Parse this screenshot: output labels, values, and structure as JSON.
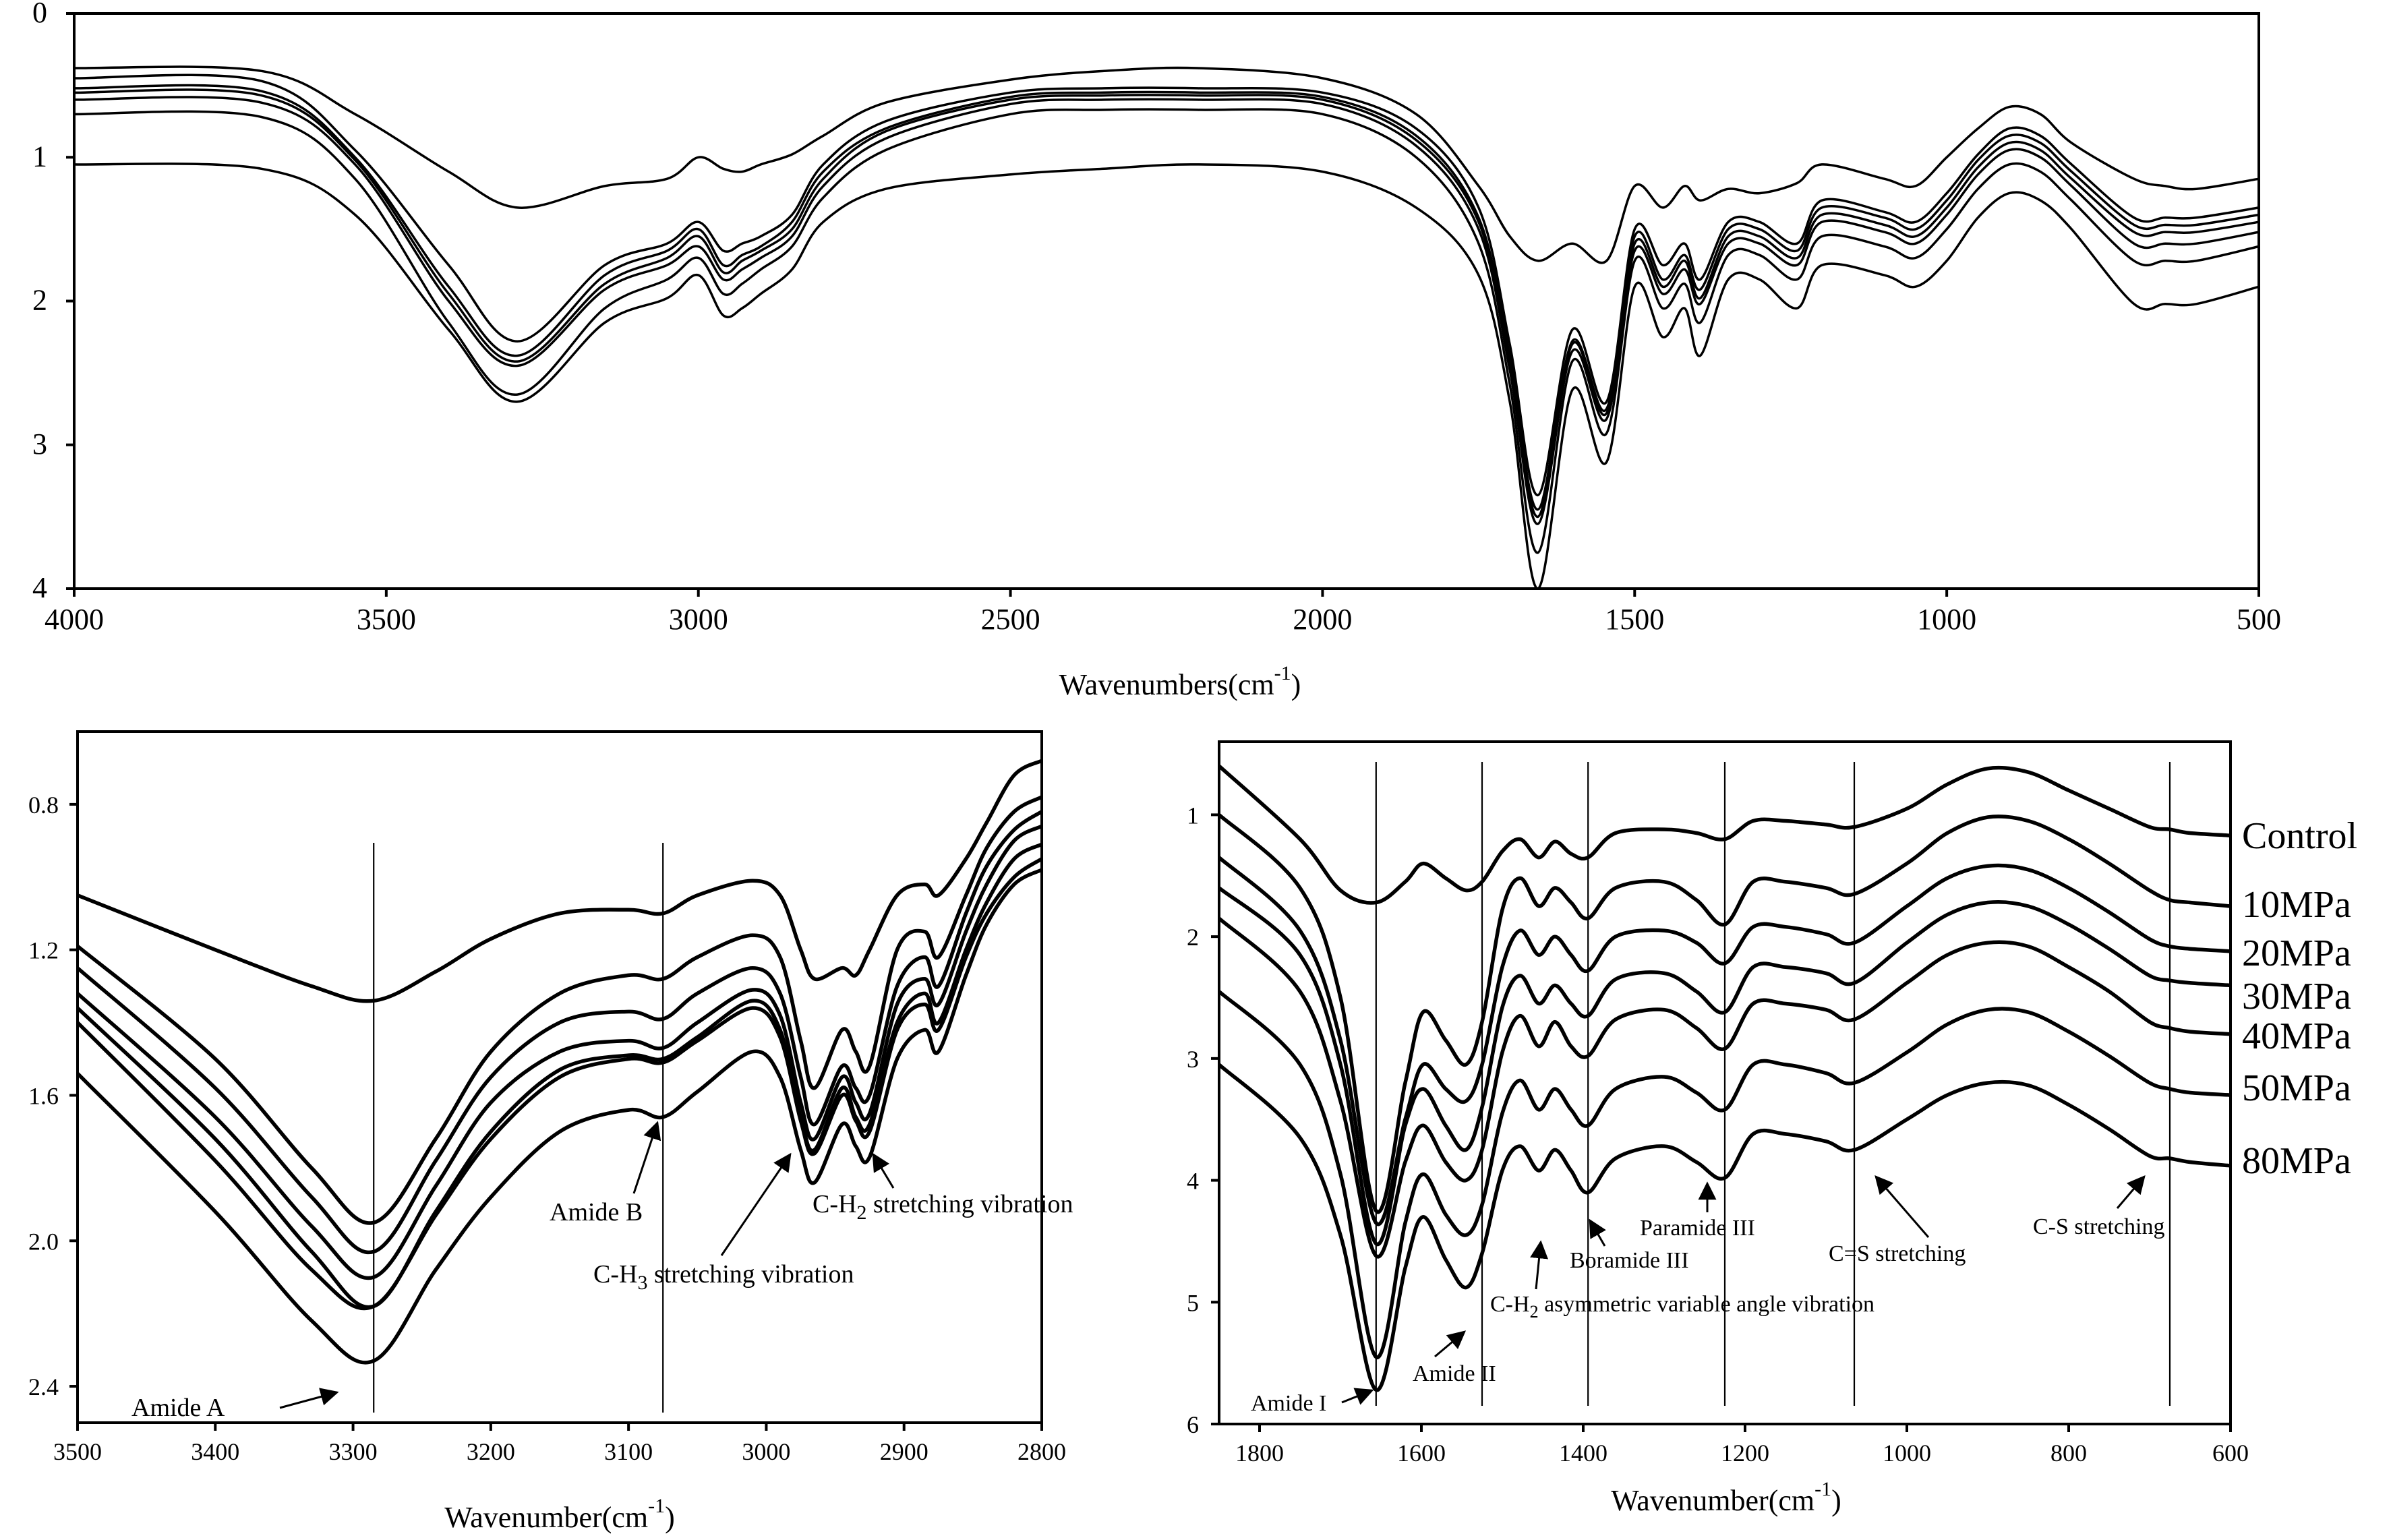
{
  "chart_data": [
    {
      "type": "line",
      "title": "",
      "xlabel": "Wavenumbers(cm-1)",
      "xlabel_text": "Wavenumbers(cm",
      "xlabel_sup": "-1",
      "xlabel_close": ")",
      "xlim": [
        4000,
        500
      ],
      "ylim": [
        0,
        4
      ],
      "y_inverted": true,
      "xticks": [
        4000,
        3500,
        3000,
        2500,
        2000,
        1500,
        1000,
        500
      ],
      "yticks": [
        0,
        1,
        2,
        3,
        4
      ],
      "key_x": [
        4000,
        3700,
        3550,
        3400,
        3290,
        3150,
        3050,
        3000,
        2960,
        2930,
        2900,
        2850,
        2800,
        2700,
        2500,
        2350,
        2200,
        2000,
        1850,
        1750,
        1700,
        1655,
        1600,
        1545,
        1500,
        1455,
        1420,
        1395,
        1350,
        1300,
        1240,
        1200,
        1100,
        1050,
        1000,
        950,
        900,
        850,
        800,
        700,
        650,
        600,
        500
      ],
      "series": [
        {
          "name": "Control",
          "values": [
            0.38,
            0.4,
            0.7,
            1.1,
            1.35,
            1.2,
            1.15,
            1.0,
            1.08,
            1.1,
            1.05,
            0.98,
            0.85,
            0.62,
            0.46,
            0.4,
            0.38,
            0.45,
            0.7,
            1.2,
            1.55,
            1.72,
            1.6,
            1.72,
            1.2,
            1.35,
            1.2,
            1.3,
            1.22,
            1.25,
            1.18,
            1.05,
            1.15,
            1.2,
            1.0,
            0.8,
            0.65,
            0.7,
            0.9,
            1.15,
            1.2,
            1.22,
            1.15
          ]
        },
        {
          "name": "10MPa",
          "values": [
            0.45,
            0.47,
            0.95,
            1.75,
            2.28,
            1.75,
            1.6,
            1.45,
            1.65,
            1.6,
            1.55,
            1.4,
            1.05,
            0.75,
            0.55,
            0.52,
            0.52,
            0.55,
            0.8,
            1.35,
            2.3,
            3.35,
            2.2,
            2.7,
            1.5,
            1.75,
            1.6,
            1.85,
            1.45,
            1.45,
            1.6,
            1.3,
            1.38,
            1.45,
            1.25,
            0.98,
            0.8,
            0.85,
            1.05,
            1.42,
            1.42,
            1.42,
            1.35
          ]
        },
        {
          "name": "20MPa",
          "values": [
            0.52,
            0.54,
            1.0,
            1.9,
            2.38,
            1.82,
            1.65,
            1.5,
            1.75,
            1.68,
            1.62,
            1.45,
            1.1,
            0.8,
            0.58,
            0.55,
            0.55,
            0.58,
            0.85,
            1.42,
            2.38,
            3.45,
            2.28,
            2.75,
            1.55,
            1.85,
            1.68,
            1.92,
            1.5,
            1.5,
            1.65,
            1.35,
            1.42,
            1.5,
            1.3,
            1.02,
            0.85,
            0.9,
            1.1,
            1.47,
            1.47,
            1.47,
            1.4
          ]
        },
        {
          "name": "30MPa",
          "values": [
            0.55,
            0.57,
            1.02,
            1.95,
            2.42,
            1.88,
            1.7,
            1.55,
            1.8,
            1.72,
            1.65,
            1.5,
            1.15,
            0.82,
            0.6,
            0.57,
            0.57,
            0.6,
            0.88,
            1.45,
            2.42,
            3.5,
            2.3,
            2.78,
            1.6,
            1.9,
            1.72,
            1.98,
            1.55,
            1.55,
            1.7,
            1.4,
            1.47,
            1.55,
            1.35,
            1.07,
            0.9,
            0.95,
            1.15,
            1.52,
            1.52,
            1.52,
            1.45
          ]
        },
        {
          "name": "40MPa",
          "values": [
            0.6,
            0.62,
            1.05,
            2.0,
            2.45,
            1.92,
            1.75,
            1.62,
            1.85,
            1.78,
            1.7,
            1.55,
            1.2,
            0.87,
            0.63,
            0.6,
            0.6,
            0.63,
            0.92,
            1.5,
            2.48,
            3.55,
            2.35,
            2.82,
            1.65,
            1.95,
            1.78,
            2.02,
            1.6,
            1.6,
            1.75,
            1.45,
            1.52,
            1.6,
            1.4,
            1.12,
            0.95,
            1.0,
            1.2,
            1.6,
            1.6,
            1.6,
            1.52
          ]
        },
        {
          "name": "50MPa",
          "values": [
            0.7,
            0.72,
            1.15,
            2.15,
            2.65,
            2.05,
            1.85,
            1.7,
            1.95,
            1.88,
            1.78,
            1.62,
            1.28,
            0.95,
            0.7,
            0.67,
            0.67,
            0.7,
            1.0,
            1.6,
            2.58,
            3.75,
            2.42,
            2.92,
            1.72,
            2.05,
            1.88,
            2.15,
            1.68,
            1.68,
            1.85,
            1.55,
            1.62,
            1.7,
            1.5,
            1.22,
            1.05,
            1.1,
            1.3,
            1.72,
            1.72,
            1.72,
            1.62
          ]
        },
        {
          "name": "80MPa",
          "values": [
            1.05,
            1.08,
            1.4,
            2.2,
            2.7,
            2.15,
            1.98,
            1.82,
            2.1,
            2.05,
            1.95,
            1.78,
            1.45,
            1.22,
            1.12,
            1.08,
            1.05,
            1.1,
            1.35,
            1.82,
            2.7,
            4.0,
            2.62,
            3.12,
            1.9,
            2.25,
            2.05,
            2.38,
            1.85,
            1.85,
            2.05,
            1.75,
            1.82,
            1.9,
            1.72,
            1.42,
            1.25,
            1.3,
            1.5,
            2.02,
            2.02,
            2.02,
            1.9
          ]
        }
      ]
    },
    {
      "type": "line",
      "xlabel": "Wavenumber(cm-1)",
      "xlabel_text": "Wavenumber(cm",
      "xlabel_sup": "-1",
      "xlabel_close": ")",
      "xlim": [
        3500,
        2800
      ],
      "ylim": [
        0.6,
        2.5
      ],
      "y_inverted": true,
      "xticks": [
        3500,
        3400,
        3300,
        3200,
        3100,
        3000,
        2900,
        2800
      ],
      "yticks": [
        "0.8",
        "1.2",
        "1.6",
        "2.0",
        "2.4"
      ],
      "vlines": [
        3285,
        3075
      ],
      "key_x": [
        3500,
        3400,
        3330,
        3285,
        3240,
        3200,
        3150,
        3100,
        3075,
        3050,
        3010,
        2990,
        2975,
        2965,
        2945,
        2935,
        2925,
        2905,
        2885,
        2875,
        2855,
        2840,
        2820,
        2800
      ],
      "series": [
        {
          "name": "Control",
          "values": [
            1.05,
            1.2,
            1.3,
            1.34,
            1.26,
            1.17,
            1.1,
            1.09,
            1.1,
            1.05,
            1.01,
            1.05,
            1.2,
            1.28,
            1.25,
            1.27,
            1.2,
            1.05,
            1.02,
            1.05,
            0.95,
            0.85,
            0.72,
            0.68
          ]
        },
        {
          "name": "10MPa",
          "values": [
            1.19,
            1.5,
            1.8,
            1.95,
            1.72,
            1.48,
            1.32,
            1.27,
            1.28,
            1.22,
            1.16,
            1.22,
            1.45,
            1.58,
            1.42,
            1.48,
            1.52,
            1.2,
            1.15,
            1.22,
            1.05,
            0.92,
            0.82,
            0.78
          ]
        },
        {
          "name": "20MPa",
          "values": [
            1.25,
            1.58,
            1.88,
            2.03,
            1.78,
            1.55,
            1.4,
            1.37,
            1.39,
            1.32,
            1.25,
            1.32,
            1.55,
            1.68,
            1.52,
            1.58,
            1.6,
            1.3,
            1.22,
            1.3,
            1.1,
            0.97,
            0.87,
            0.82
          ]
        },
        {
          "name": "30MPa",
          "values": [
            1.32,
            1.66,
            1.96,
            2.1,
            1.85,
            1.62,
            1.48,
            1.45,
            1.47,
            1.4,
            1.31,
            1.38,
            1.62,
            1.72,
            1.55,
            1.62,
            1.65,
            1.35,
            1.28,
            1.35,
            1.15,
            1.02,
            0.9,
            0.86
          ]
        },
        {
          "name": "40MPa",
          "values": [
            1.36,
            1.72,
            2.03,
            2.18,
            1.92,
            1.7,
            1.53,
            1.49,
            1.5,
            1.44,
            1.34,
            1.42,
            1.66,
            1.75,
            1.58,
            1.66,
            1.68,
            1.4,
            1.32,
            1.4,
            1.2,
            1.07,
            0.95,
            0.91
          ]
        },
        {
          "name": "50MPa",
          "values": [
            1.4,
            1.78,
            2.08,
            2.18,
            1.93,
            1.72,
            1.55,
            1.5,
            1.51,
            1.45,
            1.36,
            1.44,
            1.67,
            1.76,
            1.6,
            1.67,
            1.7,
            1.42,
            1.35,
            1.42,
            1.22,
            1.1,
            1.0,
            0.95
          ]
        },
        {
          "name": "80MPa",
          "values": [
            1.54,
            1.92,
            2.22,
            2.33,
            2.08,
            1.88,
            1.7,
            1.64,
            1.66,
            1.59,
            1.48,
            1.55,
            1.75,
            1.84,
            1.68,
            1.74,
            1.77,
            1.5,
            1.42,
            1.48,
            1.27,
            1.13,
            1.02,
            0.98
          ]
        }
      ]
    },
    {
      "type": "line",
      "xlabel": "Wavenumber(cm-1)",
      "xlabel_text": "Wavenumber(cm",
      "xlabel_sup": "-1",
      "xlabel_close": ")",
      "xlim": [
        1850,
        600
      ],
      "ylim": [
        0.4,
        6
      ],
      "y_inverted": true,
      "xticks": [
        1800,
        1600,
        1400,
        1200,
        1000,
        800,
        600
      ],
      "yticks": [
        1,
        2,
        3,
        4,
        5,
        6
      ],
      "vlines": [
        1656,
        1525,
        1394,
        1225,
        1065,
        675
      ],
      "key_x": [
        1850,
        1750,
        1700,
        1656,
        1620,
        1598,
        1570,
        1545,
        1525,
        1500,
        1478,
        1455,
        1435,
        1415,
        1394,
        1360,
        1300,
        1260,
        1225,
        1190,
        1150,
        1100,
        1065,
        1000,
        950,
        900,
        850,
        800,
        750,
        700,
        675,
        650,
        600
      ],
      "series": [
        {
          "name": "Control",
          "values": [
            0.6,
            1.2,
            1.62,
            1.72,
            1.55,
            1.4,
            1.52,
            1.62,
            1.55,
            1.3,
            1.2,
            1.35,
            1.22,
            1.32,
            1.35,
            1.15,
            1.12,
            1.15,
            1.2,
            1.05,
            1.05,
            1.08,
            1.1,
            0.95,
            0.75,
            0.62,
            0.65,
            0.8,
            0.95,
            1.1,
            1.12,
            1.15,
            1.17
          ]
        },
        {
          "name": "10MPa",
          "values": [
            1.0,
            1.6,
            2.5,
            4.25,
            3.2,
            2.62,
            2.85,
            3.05,
            2.7,
            1.78,
            1.52,
            1.75,
            1.6,
            1.72,
            1.85,
            1.6,
            1.55,
            1.7,
            1.9,
            1.55,
            1.55,
            1.6,
            1.65,
            1.4,
            1.15,
            1.02,
            1.05,
            1.2,
            1.4,
            1.62,
            1.7,
            1.72,
            1.75
          ]
        },
        {
          "name": "20MPa",
          "values": [
            1.35,
            1.95,
            2.85,
            4.35,
            3.5,
            3.05,
            3.25,
            3.35,
            3.05,
            2.25,
            1.95,
            2.15,
            2.0,
            2.15,
            2.28,
            2.0,
            1.95,
            2.05,
            2.22,
            1.92,
            1.92,
            1.98,
            2.05,
            1.75,
            1.52,
            1.42,
            1.45,
            1.6,
            1.8,
            2.02,
            2.08,
            2.1,
            2.12
          ]
        },
        {
          "name": "30MPa",
          "values": [
            1.6,
            2.15,
            3.05,
            4.52,
            3.55,
            3.25,
            3.55,
            3.75,
            3.4,
            2.58,
            2.32,
            2.55,
            2.4,
            2.55,
            2.65,
            2.35,
            2.3,
            2.45,
            2.62,
            2.25,
            2.25,
            2.3,
            2.38,
            2.05,
            1.82,
            1.72,
            1.75,
            1.9,
            2.1,
            2.32,
            2.36,
            2.38,
            2.4
          ]
        },
        {
          "name": "40MPa",
          "values": [
            1.85,
            2.45,
            3.35,
            4.62,
            3.85,
            3.55,
            3.85,
            4.0,
            3.75,
            2.95,
            2.65,
            2.9,
            2.7,
            2.9,
            2.98,
            2.68,
            2.6,
            2.75,
            2.92,
            2.55,
            2.55,
            2.6,
            2.68,
            2.38,
            2.15,
            2.05,
            2.08,
            2.25,
            2.45,
            2.7,
            2.75,
            2.78,
            2.8
          ]
        },
        {
          "name": "50MPa",
          "values": [
            2.45,
            3.05,
            3.95,
            5.45,
            4.35,
            3.95,
            4.28,
            4.45,
            4.2,
            3.45,
            3.18,
            3.42,
            3.25,
            3.42,
            3.55,
            3.25,
            3.15,
            3.28,
            3.42,
            3.05,
            3.05,
            3.12,
            3.2,
            2.95,
            2.72,
            2.6,
            2.62,
            2.78,
            2.98,
            3.2,
            3.25,
            3.28,
            3.3
          ]
        },
        {
          "name": "80MPa",
          "values": [
            3.05,
            3.65,
            4.45,
            5.72,
            4.72,
            4.3,
            4.65,
            4.88,
            4.6,
            3.92,
            3.72,
            3.92,
            3.75,
            3.92,
            4.1,
            3.82,
            3.72,
            3.85,
            3.98,
            3.62,
            3.62,
            3.68,
            3.75,
            3.5,
            3.3,
            3.2,
            3.22,
            3.38,
            3.58,
            3.8,
            3.82,
            3.85,
            3.88
          ]
        }
      ],
      "legend": [
        "Control",
        "10MPa",
        "20MPa",
        "30MPa",
        "40MPa",
        "50MPa",
        "80MPa"
      ]
    }
  ],
  "annotations": {
    "mid": {
      "amide_a": "Amide A",
      "amide_b": "Amide B",
      "ch3_prefix": "C-H",
      "ch3_sub": "3",
      "ch3_suffix": " stretching vibration",
      "ch2_prefix": "C-H",
      "ch2_sub": "2",
      "ch2_suffix": " stretching vibration"
    },
    "right": {
      "amide_i": "Amide I",
      "amide_ii": "Amide II",
      "ch2_prefix": "C-H",
      "ch2_sub": "2",
      "ch2_suffix": " asymmetric variable angle vibration",
      "boramide": "Boramide III",
      "paramide": "Paramide III",
      "cs_double": "C=S stretching",
      "cs_single": "C-S stretching"
    }
  }
}
